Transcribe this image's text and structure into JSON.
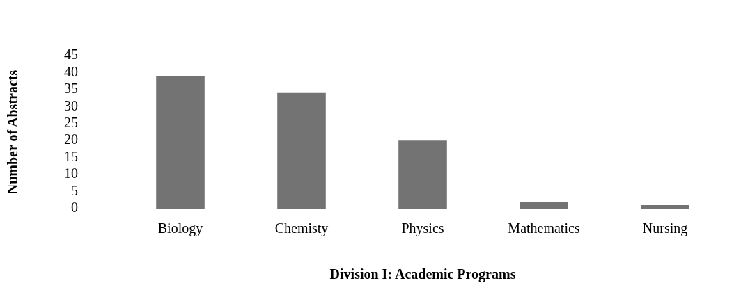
{
  "chart_data": {
    "type": "bar",
    "xlabel": "Division I: Academic Programs",
    "ylabel": "Number of Abstracts",
    "categories": [
      "Biology",
      "Chemisty",
      "Physics",
      "Mathematics",
      "Nursing"
    ],
    "values": [
      39,
      34,
      20,
      2,
      1
    ],
    "color": "#737373",
    "ylim": [
      0,
      45
    ],
    "yticks": [
      0,
      5,
      10,
      15,
      20,
      25,
      30,
      35,
      40,
      45
    ],
    "grid": false,
    "legend": false
  }
}
